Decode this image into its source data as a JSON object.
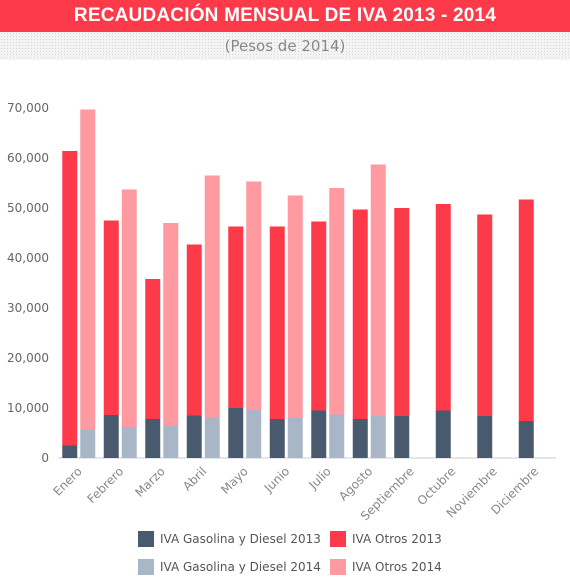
{
  "chart_data": {
    "type": "bar",
    "stacked": true,
    "title": "RECAUDACIÓN MENSUAL DE IVA 2013 - 2014",
    "subtitle": "(Pesos de  2014)",
    "categories": [
      "Enero",
      "Febrero",
      "Marzo",
      "Abril",
      "Mayo",
      "Junio",
      "Julio",
      "Agosto",
      "Septiembre",
      "Octubre",
      "Noviembre",
      "Diciembre"
    ],
    "ylim": [
      0,
      70000
    ],
    "yticks": [
      "0",
      "10,000",
      "20,000",
      "30,000",
      "40,000",
      "50,000",
      "60,000",
      "70,000"
    ],
    "ytick_values": [
      0,
      10000,
      20000,
      30000,
      40000,
      50000,
      60000,
      70000
    ],
    "grid": false,
    "legend_position": "bottom",
    "groups": [
      {
        "year": "2013",
        "stack": [
          {
            "name": "IVA Gasolina y Diesel 2013",
            "color": "#4a5a6e",
            "values": [
              2500,
              8600,
              7800,
              8500,
              10000,
              7800,
              9500,
              7800,
              8400,
              9500,
              8400,
              7400
            ]
          },
          {
            "name": "IVA Otros 2013",
            "color": "#fd3a4a",
            "values": [
              58900,
              38900,
              28000,
              34200,
              36300,
              38500,
              37800,
              41900,
              41600,
              41300,
              40300,
              44300
            ]
          }
        ]
      },
      {
        "year": "2014",
        "stack": [
          {
            "name": "IVA Gasolina y Diesel 2014",
            "color": "#a9b6c7",
            "values": [
              5800,
              6200,
              6500,
              8000,
              9700,
              8000,
              8700,
              8500,
              null,
              null,
              null,
              null
            ]
          },
          {
            "name": "IVA Otros 2014",
            "color": "#fe9aa0",
            "values": [
              63900,
              47500,
              40500,
              48500,
              45600,
              44500,
              45300,
              50200,
              null,
              null,
              null,
              null
            ]
          }
        ]
      }
    ]
  },
  "legend": {
    "items": [
      {
        "label": "IVA Gasolina y Diesel 2013",
        "color": "#4a5a6e"
      },
      {
        "label": "IVA Otros 2013",
        "color": "#fd3a4a"
      },
      {
        "label": "IVA Gasolina y Diesel 2014",
        "color": "#a9b6c7"
      },
      {
        "label": "IVA Otros 2014",
        "color": "#fe9aa0"
      }
    ]
  }
}
